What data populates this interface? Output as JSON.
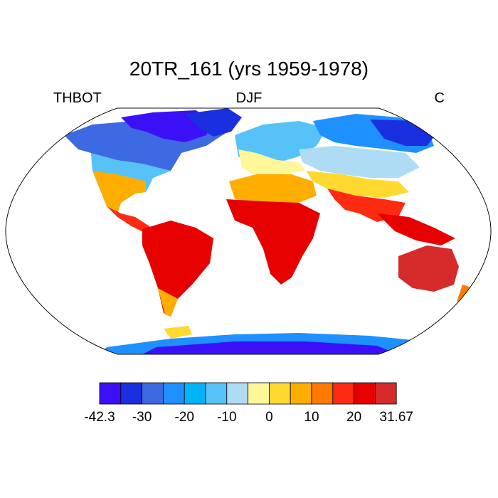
{
  "title": "20TR_161 (yrs 1959-1978)",
  "left_label": "THBOT",
  "center_label": "DJF",
  "right_label": "C",
  "colorbar": {
    "colors": [
      "#3c10f6",
      "#1a2fe0",
      "#3d6ae0",
      "#1e90ff",
      "#00b4f7",
      "#56c2f7",
      "#aedcf5",
      "#fff799",
      "#ffd92f",
      "#ffae00",
      "#ff7a00",
      "#ff2a12",
      "#e60000",
      "#d62b2b"
    ],
    "tick_labels": [
      "-42.3",
      "-30",
      "-20",
      "-10",
      "0",
      "10",
      "20",
      "31.67"
    ],
    "tick_values": [
      -42.3,
      -30,
      -20,
      -10,
      0,
      10,
      20,
      31.67
    ],
    "min": -42.3,
    "max": 31.67
  },
  "legend_ticks": [
    {
      "value": -42.3,
      "label": "-42.3"
    },
    {
      "value": -30,
      "label": "-30"
    },
    {
      "value": -20,
      "label": "-20"
    },
    {
      "value": -10,
      "label": "-10"
    },
    {
      "value": 0,
      "label": "0"
    },
    {
      "value": 10,
      "label": "10"
    },
    {
      "value": 20,
      "label": "20"
    },
    {
      "value": 31.67,
      "label": "31.67"
    }
  ]
}
